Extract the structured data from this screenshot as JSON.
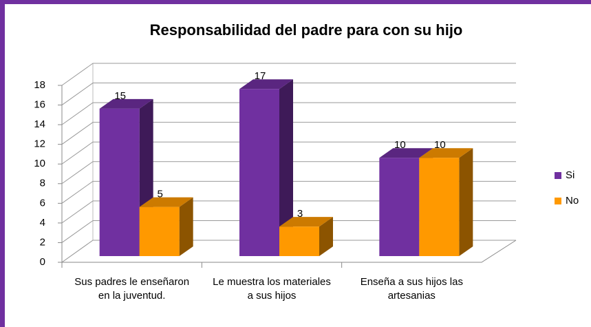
{
  "chart_data": {
    "type": "bar3d",
    "title": "Responsabilidad del padre para con su hijo",
    "categories": [
      "Sus padres le enseñaron en la juventud.",
      "Le muestra los materiales  a sus hijos",
      "Enseña a sus hijos las artesanias"
    ],
    "series": [
      {
        "name": "Si",
        "color": "#7030a0",
        "values": [
          15,
          17,
          10
        ]
      },
      {
        "name": "No",
        "color": "#ff9900",
        "values": [
          5,
          3,
          10
        ]
      }
    ],
    "ylim": [
      0,
      18
    ],
    "yticks": [
      0,
      2,
      4,
      6,
      8,
      10,
      12,
      14,
      16,
      18
    ],
    "grid": true,
    "legend": "right"
  }
}
